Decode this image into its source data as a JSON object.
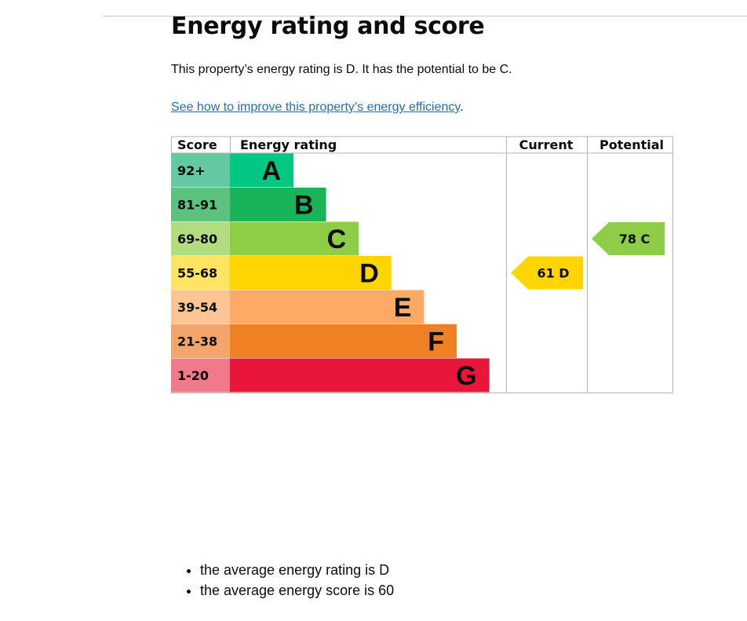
{
  "page": {
    "title": "Energy rating and score",
    "summary": "This property’s energy rating is D. It has the potential to be C.",
    "link_text": "See how to improve this property’s energy efficiency",
    "link_suffix": ".",
    "facts": [
      "the average energy rating is D",
      "the average energy score is 60"
    ]
  },
  "chart_data": {
    "type": "table",
    "headers": {
      "score": "Score",
      "rating": "Energy rating",
      "current": "Current",
      "potential": "Potential"
    },
    "bands": [
      {
        "letter": "A",
        "score_range": "92+",
        "color": "#00c781",
        "score_bg": "#64c8a0"
      },
      {
        "letter": "B",
        "score_range": "81-91",
        "color": "#19b459",
        "score_bg": "#5ec27f"
      },
      {
        "letter": "C",
        "score_range": "69-80",
        "color": "#8dce46",
        "score_bg": "#b1dd80"
      },
      {
        "letter": "D",
        "score_range": "55-68",
        "color": "#ffd500",
        "score_bg": "#ffe363"
      },
      {
        "letter": "E",
        "score_range": "39-54",
        "color": "#fcaa65",
        "score_bg": "#fdc494"
      },
      {
        "letter": "F",
        "score_range": "21-38",
        "color": "#ef8023",
        "score_bg": "#f3a56b"
      },
      {
        "letter": "G",
        "score_range": "1-20",
        "color": "#e9153b",
        "score_bg": "#f07a8a"
      }
    ],
    "current": {
      "score": 61,
      "rating": "D",
      "label": "61  D",
      "color": "#ffd500"
    },
    "potential": {
      "score": 78,
      "rating": "C",
      "label": "78  C",
      "color": "#8dce46"
    }
  }
}
